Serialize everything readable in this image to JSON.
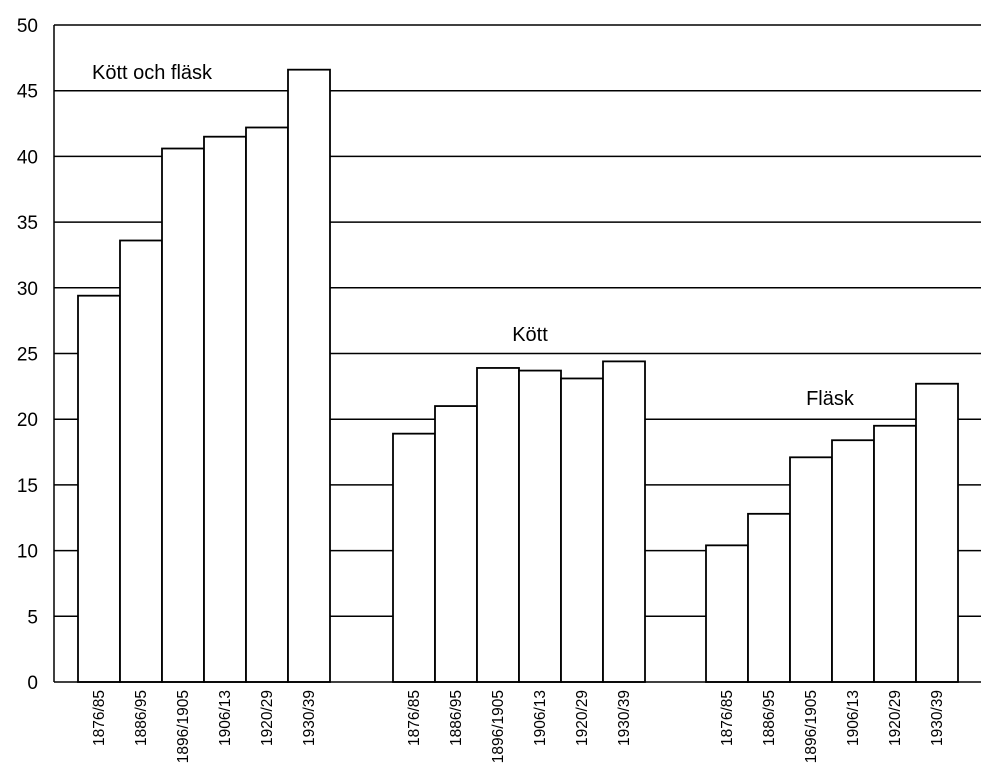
{
  "chart_data": {
    "type": "bar",
    "title": "",
    "xlabel": "",
    "ylabel": "",
    "ylim": [
      0,
      50
    ],
    "yticks": [
      0,
      5,
      10,
      15,
      20,
      25,
      30,
      35,
      40,
      45,
      50
    ],
    "grid": true,
    "legend": "none",
    "bar_fill": "#ffffff",
    "bar_stroke": "#000000",
    "groups": [
      {
        "label": "Kött och fläsk",
        "categories": [
          "1876/85",
          "1886/95",
          "1896/1905",
          "1906/13",
          "1920/29",
          "1930/39"
        ],
        "values": [
          29.4,
          33.6,
          40.6,
          41.5,
          42.2,
          46.6
        ]
      },
      {
        "label": "Kött",
        "categories": [
          "1876/85",
          "1886/95",
          "1896/1905",
          "1906/13",
          "1920/29",
          "1930/39"
        ],
        "values": [
          18.9,
          21.0,
          23.9,
          23.7,
          23.1,
          24.4
        ]
      },
      {
        "label": "Fläsk",
        "categories": [
          "1876/85",
          "1886/95",
          "1896/1905",
          "1906/13",
          "1920/29",
          "1930/39"
        ],
        "values": [
          10.4,
          12.8,
          17.1,
          18.4,
          19.5,
          22.7
        ]
      }
    ]
  }
}
